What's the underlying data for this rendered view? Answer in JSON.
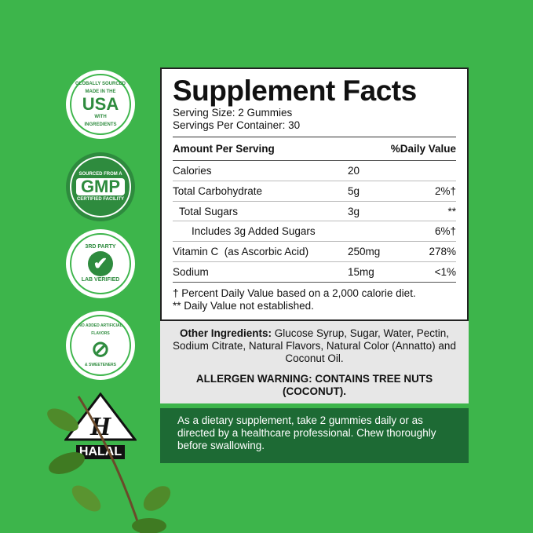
{
  "badges": [
    {
      "top": "GLOBALLY SOURCED",
      "main": "USA",
      "small": "MADE IN THE",
      "small2": "WITH",
      "bottom": "INGREDIENTS"
    },
    {
      "top": "SOURCED FROM A",
      "main": "GMP",
      "bottom": "CERTIFIED FACILITY"
    },
    {
      "top": "3RD PARTY",
      "main": "✔",
      "bottom": "LAB VERIFIED"
    },
    {
      "top": "NO ADDED ARTIFICIAL FLAVORS",
      "main": "⊘",
      "bottom": "& SWEETENERS"
    }
  ],
  "halal": "HALAL",
  "facts": {
    "title": "Supplement Facts",
    "serving_size": "Serving Size: 2 Gummies",
    "servings": "Servings Per Container: 30",
    "header_amount": "Amount Per Serving",
    "header_dv": "%Daily Value",
    "rows": [
      {
        "name": "Calories",
        "amount": "20",
        "dv": ""
      },
      {
        "name": "Total Carbohydrate",
        "amount": "5g",
        "dv": "2%†"
      },
      {
        "name": "Total Sugars",
        "amount": "3g",
        "dv": "**"
      },
      {
        "name": "Includes 3g Added Sugars",
        "amount": "",
        "dv": "6%†"
      },
      {
        "name": "Vitamin C  (as Ascorbic Acid)",
        "amount": "250mg",
        "dv": "278%"
      },
      {
        "name": "Sodium",
        "amount": "15mg",
        "dv": "<1%"
      }
    ],
    "footnote1": "† Percent Daily Value based on a 2,000 calorie diet.",
    "footnote2": "** Daily Value not established."
  },
  "ingredients": {
    "label": "Other Ingredients:",
    "text": " Glucose Syrup, Sugar, Water, Pectin, Sodium Citrate, Natural Flavors, Natural Color (Annatto) and Coconut Oil."
  },
  "allergen": "ALLERGEN WARNING: CONTAINS TREE NUTS (COCONUT).",
  "directions": "As a dietary supplement, take 2 gummies daily or as directed by a healthcare professional. Chew thoroughly before swallowing.",
  "colors": {
    "background": "#3db54b",
    "dark_green": "#1d6a34",
    "gray": "#e7e7e7"
  }
}
